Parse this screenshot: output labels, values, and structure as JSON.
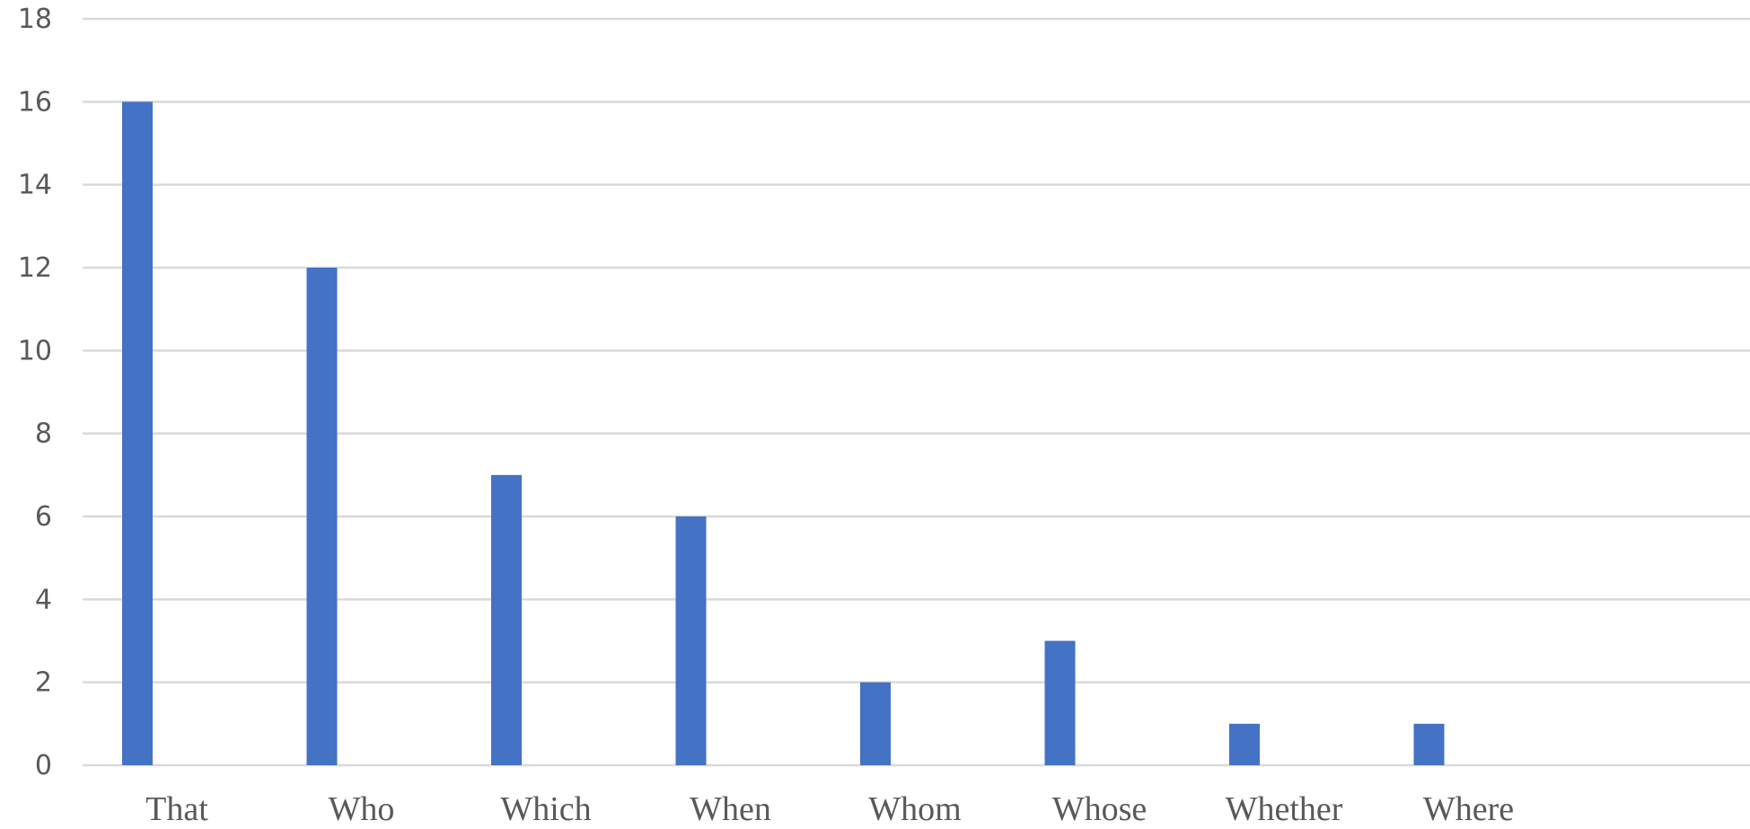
{
  "chart_data": {
    "type": "bar",
    "title": "",
    "xlabel": "",
    "ylabel": "",
    "categories": [
      "That",
      "Who",
      "Which",
      "When",
      "Whom",
      "Whose",
      "Whether",
      "Where"
    ],
    "values": [
      16,
      12,
      7,
      6,
      2,
      3,
      1,
      1
    ],
    "ylim": [
      0,
      18
    ],
    "yticks": [
      0,
      2,
      4,
      6,
      8,
      10,
      12,
      14,
      16,
      18
    ],
    "grid": true,
    "legend": "none",
    "bar_color": "#4472c4",
    "grid_color": "#d9d9d9",
    "text_color": "#595959"
  }
}
